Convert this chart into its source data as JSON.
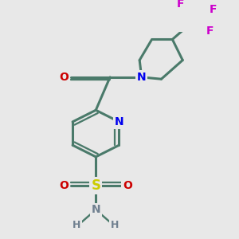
{
  "background_color": "#e8e8e8",
  "bond_color": "#4a7a6a",
  "bond_width": 2.2,
  "figsize": [
    3.0,
    3.0
  ],
  "dpi": 100,
  "colors": {
    "N": "#0000ee",
    "O": "#cc0000",
    "S": "#cccc00",
    "F": "#cc00cc",
    "N_sul": "#708090",
    "H": "#708090"
  }
}
